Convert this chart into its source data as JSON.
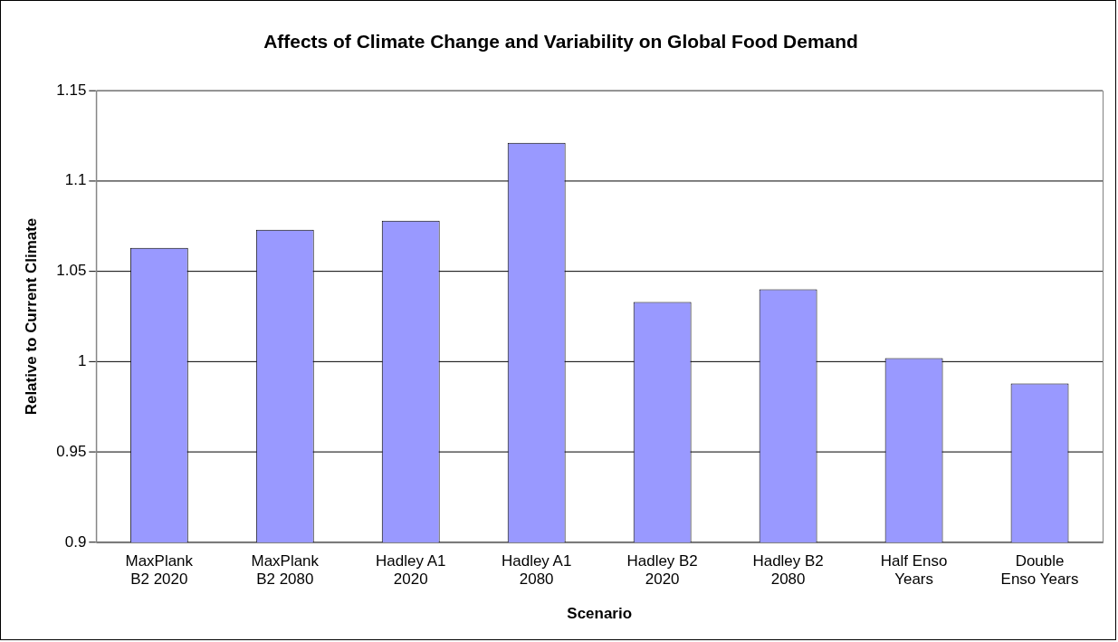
{
  "chart_data": {
    "type": "bar",
    "title": "Affects of Climate Change and Variability on Global Food Demand",
    "xlabel": "Scenario",
    "ylabel": "Relative to Current Climate",
    "categories": [
      "MaxPlank B2 2020",
      "MaxPlank B2 2080",
      "Hadley A1 2020",
      "Hadley A1 2080",
      "Hadley B2 2020",
      "Hadley B2 2080",
      "Half Enso Years",
      "Double Enso Years"
    ],
    "values": [
      1.063,
      1.073,
      1.078,
      1.121,
      1.033,
      1.04,
      1.002,
      0.988
    ],
    "color": "#9999ff",
    "ylim": [
      0.9,
      1.15
    ],
    "yticks": [
      0.9,
      0.95,
      1,
      1.05,
      1.1,
      1.15
    ],
    "grid": "y"
  }
}
